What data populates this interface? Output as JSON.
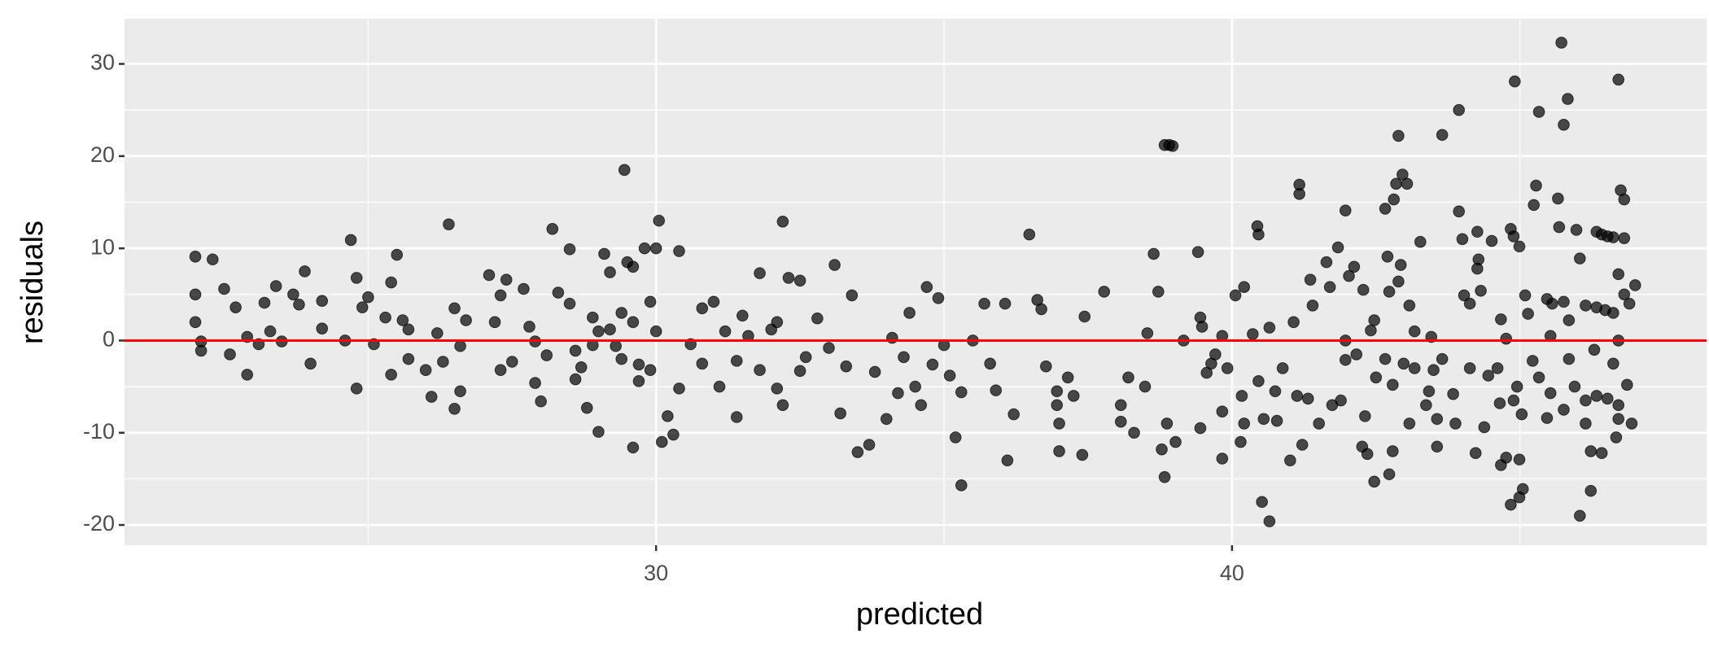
{
  "chart_data": {
    "type": "scatter",
    "x_label": "predicted",
    "y_label": "residuals",
    "xlim": [
      20.77,
      48.24
    ],
    "ylim": [
      -22.2,
      34.9
    ],
    "xticks": [
      30,
      40
    ],
    "yticks": [
      -20,
      -10,
      0,
      10,
      20,
      30
    ],
    "xminor": [
      25,
      35,
      45
    ],
    "yminor": [
      -15,
      -5,
      5,
      15,
      25
    ],
    "grid": true,
    "panel_color": "#ebebeb",
    "color": "#000000",
    "alpha": 0.7,
    "hline": 0,
    "hline_color": "#ff0000",
    "x": [
      22.0,
      22.0,
      22.0,
      22.1,
      22.1,
      22.3,
      22.5,
      22.6,
      22.7,
      22.9,
      22.9,
      23.1,
      23.2,
      23.3,
      23.4,
      23.5,
      23.7,
      23.8,
      23.9,
      24.0,
      24.2,
      24.2,
      24.6,
      24.7,
      24.8,
      24.8,
      24.9,
      25.0,
      25.1,
      25.3,
      25.4,
      25.4,
      25.5,
      25.6,
      25.7,
      25.7,
      26.0,
      26.1,
      26.2,
      26.3,
      26.4,
      26.5,
      26.5,
      26.6,
      26.6,
      26.7,
      27.1,
      27.2,
      27.3,
      27.3,
      27.4,
      27.5,
      27.7,
      27.8,
      27.9,
      27.9,
      28.0,
      28.1,
      28.2,
      28.3,
      28.5,
      28.6,
      28.7,
      28.8,
      28.9,
      28.9,
      29.0,
      29.1,
      29.2,
      29.3,
      29.4,
      29.4,
      29.6,
      29.6,
      29.8,
      29.9,
      28.5,
      28.6,
      29.0,
      29.2,
      29.45,
      29.5,
      29.6,
      29.7,
      29.7,
      29.9,
      30.0,
      30.0,
      30.05,
      30.1,
      30.2,
      30.3,
      30.4,
      30.4,
      30.6,
      30.8,
      30.8,
      31.0,
      31.1,
      31.2,
      31.4,
      31.4,
      31.5,
      31.6,
      31.8,
      31.8,
      32.0,
      32.1,
      32.1,
      32.2,
      32.2,
      32.3,
      32.5,
      32.5,
      32.6,
      32.8,
      33.0,
      33.1,
      33.2,
      33.3,
      33.4,
      33.5,
      33.7,
      33.8,
      34.0,
      34.1,
      34.2,
      34.3,
      34.4,
      34.5,
      34.6,
      34.7,
      34.8,
      34.9,
      35.0,
      35.1,
      35.2,
      35.3,
      35.3,
      35.5,
      35.7,
      35.8,
      35.9,
      36.1,
      36.06,
      36.21,
      36.48,
      36.62,
      36.69,
      36.96,
      36.96,
      37.0,
      37.0,
      36.77,
      37.15,
      37.78,
      37.44,
      37.4,
      37.25,
      38.07,
      38.07,
      38.2,
      38.3,
      38.53,
      38.64,
      38.72,
      38.49,
      38.83,
      38.78,
      38.87,
      38.83,
      38.91,
      38.97,
      39.02,
      39.16,
      39.41,
      39.45,
      39.48,
      39.56,
      39.64,
      39.71,
      39.45,
      39.83,
      40.06,
      39.83,
      39.83,
      39.92,
      40.21,
      40.17,
      40.21,
      40.15,
      40.36,
      40.44,
      40.46,
      40.46,
      40.55,
      40.52,
      40.65,
      40.65,
      40.75,
      40.78,
      40.88,
      41.01,
      41.07,
      41.17,
      41.17,
      41.13,
      41.22,
      41.32,
      41.36,
      41.51,
      41.4,
      41.64,
      41.74,
      41.7,
      41.89,
      41.84,
      42.03,
      41.97,
      41.97,
      41.97,
      42.12,
      42.28,
      42.16,
      42.31,
      42.26,
      42.35,
      42.47,
      42.47,
      42.41,
      42.5,
      42.66,
      42.7,
      42.73,
      42.66,
      42.79,
      42.73,
      42.79,
      42.85,
      42.89,
      42.81,
      42.96,
      42.89,
      42.98,
      42.93,
      43.08,
      43.04,
      43.08,
      43.17,
      43.17,
      43.27,
      43.37,
      43.46,
      43.42,
      43.5,
      43.56,
      43.65,
      43.56,
      43.65,
      43.84,
      43.94,
      43.94,
      43.88,
      44.0,
      44.03,
      44.13,
      44.13,
      44.26,
      44.26,
      44.28,
      44.23,
      44.32,
      44.38,
      44.45,
      44.51,
      44.61,
      44.65,
      44.67,
      44.76,
      44.67,
      44.76,
      44.84,
      44.84,
      44.89,
      44.99,
      44.91,
      44.95,
      44.89,
      45.03,
      45.05,
      44.99,
      44.99,
      45.09,
      45.14,
      45.22,
      45.24,
      45.28,
      45.33,
      45.33,
      45.47,
      45.53,
      45.47,
      45.56,
      45.53,
      45.66,
      45.68,
      45.72,
      45.76,
      45.83,
      45.76,
      45.76,
      45.85,
      45.85,
      45.95,
      46.04,
      46.04,
      45.98,
      46.14,
      46.14,
      46.14,
      46.23,
      46.23,
      46.29,
      46.33,
      46.42,
      46.52,
      46.62,
      46.81,
      46.33,
      46.48,
      46.62,
      46.33,
      46.52,
      46.71,
      46.71,
      46.75,
      46.81,
      46.71,
      46.81,
      46.71,
      46.62,
      46.71,
      46.67,
      46.94,
      46.86,
      47.0,
      46.9,
      46.42
    ],
    "y": [
      9.1,
      5.0,
      2.0,
      -0.1,
      -1.1,
      8.8,
      5.6,
      -1.5,
      3.6,
      0.4,
      -3.7,
      -0.4,
      4.1,
      1.0,
      5.9,
      -0.1,
      5.0,
      3.9,
      7.5,
      -2.5,
      4.3,
      1.3,
      0.0,
      10.9,
      6.8,
      -5.2,
      3.6,
      4.7,
      -0.4,
      2.5,
      6.3,
      -3.7,
      9.3,
      2.2,
      1.2,
      -2.0,
      -3.2,
      -6.1,
      0.8,
      -2.3,
      12.6,
      3.5,
      -7.4,
      -5.5,
      -0.6,
      2.2,
      7.1,
      2.0,
      -3.2,
      4.9,
      6.6,
      -2.3,
      5.6,
      1.5,
      -0.1,
      -4.6,
      -6.6,
      -1.6,
      12.1,
      5.2,
      4.0,
      -1.1,
      -2.9,
      -7.3,
      2.5,
      -0.5,
      1.0,
      9.4,
      7.4,
      -0.6,
      3.0,
      -2.0,
      8.0,
      2.0,
      10.0,
      -3.2,
      9.9,
      -4.2,
      -9.9,
      1.2,
      18.5,
      8.5,
      -11.6,
      -4.4,
      -2.6,
      4.2,
      1.0,
      10.0,
      13.0,
      -11.0,
      -8.2,
      -10.2,
      9.7,
      -5.2,
      -0.4,
      3.5,
      -2.5,
      4.2,
      -5.0,
      1.0,
      -2.2,
      -8.3,
      2.7,
      0.5,
      7.3,
      -3.2,
      1.2,
      2.0,
      -5.2,
      12.9,
      -7.0,
      6.8,
      -3.3,
      6.5,
      -1.8,
      2.4,
      -0.8,
      8.2,
      -7.9,
      -2.8,
      4.9,
      -12.1,
      -11.3,
      -3.4,
      -8.5,
      0.3,
      -5.7,
      -1.8,
      3.0,
      -5.0,
      -7.0,
      5.8,
      -2.6,
      4.6,
      -0.5,
      -3.8,
      -10.5,
      -15.7,
      -5.6,
      0.0,
      4.0,
      -2.5,
      -5.4,
      -13.0,
      4.0,
      -8.0,
      11.5,
      4.4,
      3.4,
      -5.5,
      -7.0,
      -9.0,
      -12.0,
      -2.8,
      -4.0,
      5.3,
      2.6,
      -12.4,
      -6.0,
      -7.0,
      -8.8,
      -4.0,
      -10.0,
      0.8,
      9.4,
      5.3,
      -5.0,
      -14.8,
      -11.8,
      -9.0,
      21.2,
      21.2,
      21.1,
      -11.0,
      0.0,
      9.6,
      2.5,
      1.5,
      -3.5,
      -2.5,
      -1.5,
      -9.5,
      -12.8,
      4.9,
      -7.7,
      0.5,
      -3.0,
      5.8,
      -6.0,
      -9.0,
      -11.0,
      0.7,
      12.4,
      11.5,
      -4.4,
      -8.5,
      -17.5,
      -19.6,
      1.4,
      -5.5,
      -8.7,
      -3.0,
      -13.0,
      2.0,
      16.9,
      15.9,
      -6.0,
      -11.3,
      -6.3,
      6.6,
      -9.0,
      3.8,
      8.5,
      -7.0,
      5.8,
      -6.5,
      10.1,
      7.0,
      14.1,
      0.0,
      -2.1,
      8.0,
      5.5,
      -1.5,
      -8.2,
      -11.5,
      -12.3,
      2.2,
      -15.3,
      1.1,
      -4.0,
      14.3,
      9.1,
      5.3,
      -2.0,
      -4.8,
      -14.5,
      -12.0,
      17.0,
      22.2,
      15.3,
      18.0,
      6.4,
      -2.5,
      8.2,
      -9.0,
      17.0,
      3.8,
      -3.0,
      1.0,
      10.7,
      -7.0,
      0.4,
      -5.5,
      -3.2,
      -8.5,
      22.3,
      -11.5,
      -2.0,
      -5.8,
      25.0,
      14.0,
      -9.0,
      11.0,
      4.9,
      -3.0,
      4.0,
      7.8,
      11.8,
      8.8,
      -12.2,
      5.4,
      -9.4,
      -3.8,
      10.8,
      -3.0,
      -6.8,
      2.3,
      0.2,
      -13.5,
      -12.7,
      -17.8,
      12.1,
      11.3,
      10.2,
      28.1,
      -5.0,
      -6.5,
      -8.0,
      -16.1,
      -17.0,
      -12.9,
      4.9,
      2.9,
      -2.2,
      14.7,
      16.8,
      24.8,
      -4.0,
      4.5,
      -5.7,
      -8.4,
      4.0,
      0.5,
      15.4,
      12.3,
      32.3,
      23.4,
      26.2,
      4.2,
      -7.5,
      2.2,
      -2.0,
      -5.0,
      -19.0,
      8.9,
      12.0,
      3.8,
      -6.5,
      -9.0,
      -16.3,
      -12.0,
      -1.0,
      11.8,
      11.5,
      11.3,
      11.2,
      11.1,
      3.6,
      3.3,
      3.0,
      -6.0,
      -6.3,
      -7.0,
      28.3,
      16.3,
      15.3,
      7.2,
      5.0,
      0.0,
      -2.5,
      -8.5,
      -10.5,
      -9.0,
      -4.8,
      6.0,
      4.0,
      -12.2
    ]
  }
}
